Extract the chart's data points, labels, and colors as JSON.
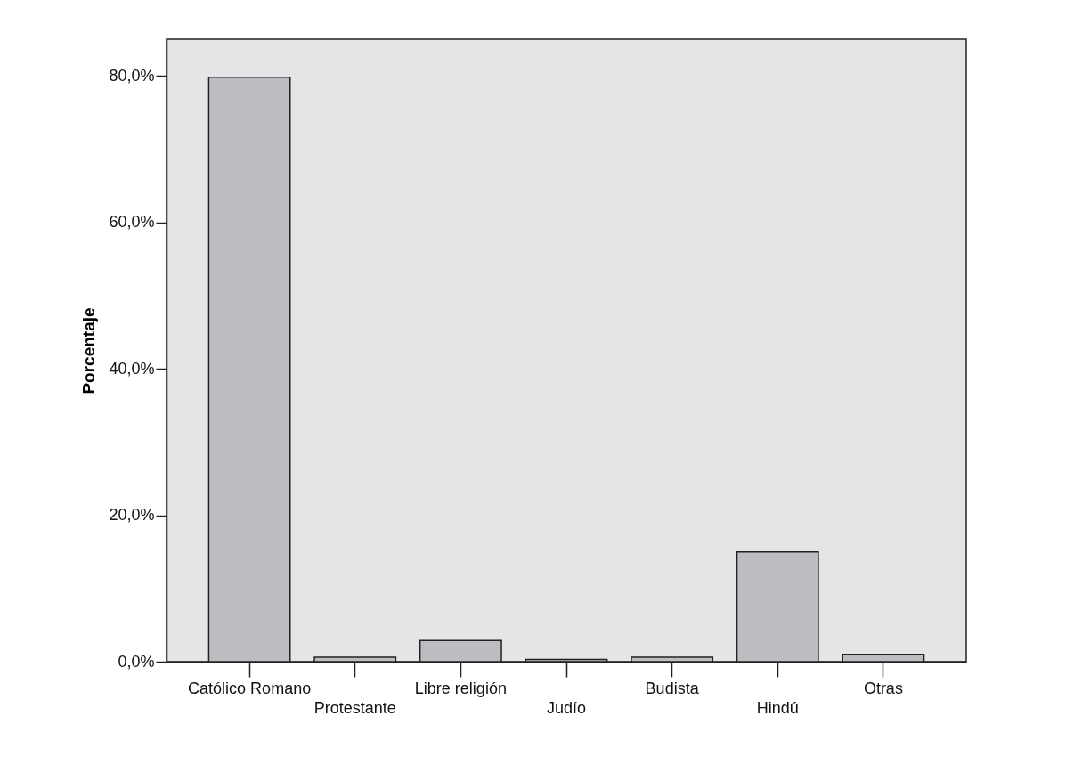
{
  "chart_data": {
    "type": "bar",
    "ylabel": "Porcentaje",
    "categories": [
      "Católico Romano",
      "Protestante",
      "Libre religión",
      "Judío",
      "Budista",
      "Hindú",
      "Otras"
    ],
    "values": [
      79.8,
      0.6,
      2.9,
      0.3,
      0.6,
      15.0,
      1.0
    ],
    "color": "#bcbdc1",
    "ylim": [
      0,
      85
    ],
    "yticks": [
      {
        "value": 0,
        "label": "0,0%"
      },
      {
        "value": 20,
        "label": "20,0%"
      },
      {
        "value": 40,
        "label": "40,0%"
      },
      {
        "value": 60,
        "label": "60,0%"
      },
      {
        "value": 80,
        "label": "80,0%"
      }
    ],
    "grid": false
  }
}
